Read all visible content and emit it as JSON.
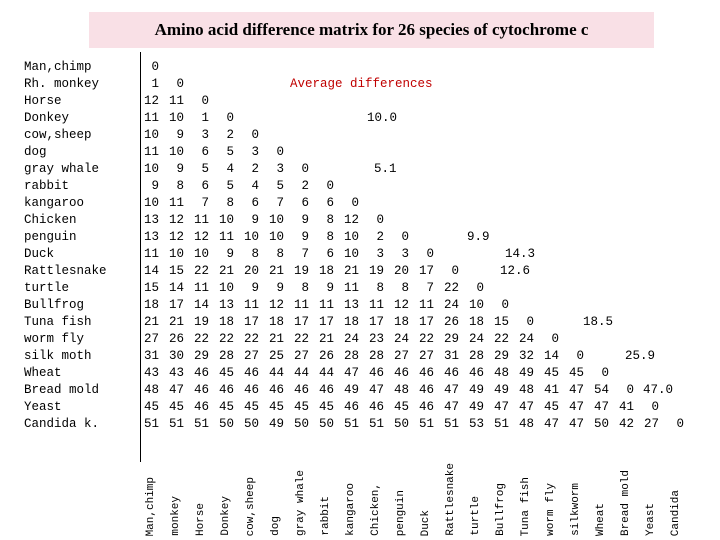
{
  "title": "Amino acid difference matrix for 26 species of cytochrome c",
  "species": [
    "Man,chimp",
    "Rh. monkey",
    "Horse",
    "Donkey",
    "cow,sheep",
    "dog",
    "gray whale",
    "rabbit",
    "kangaroo",
    "Chicken",
    "penguin",
    "Duck",
    "Rattlesnake",
    "turtle",
    "Bullfrog",
    "Tuna fish",
    "worm fly",
    "silk moth",
    "Wheat",
    "Bread mold",
    " Yeast",
    "Candida k."
  ],
  "column_labels": [
    "Man,chimp",
    "monkey",
    "Horse",
    "Donkey",
    "cow,sheep",
    "dog",
    "gray whale",
    "rabbit",
    "kangaroo",
    "Chicken,",
    "penguin",
    "Duck",
    "Rattlesnake",
    "turtle",
    "Bullfrog",
    "Tuna fish",
    "worm fly",
    "silkworm",
    "Wheat",
    "Bread mold",
    "Yeast",
    "Candida"
  ],
  "matrix": [
    [
      "0"
    ],
    [
      "1",
      "0"
    ],
    [
      "12",
      "11",
      "0"
    ],
    [
      "11",
      "10",
      "1",
      "0"
    ],
    [
      "10",
      "9",
      "3",
      "2",
      "0"
    ],
    [
      "11",
      "10",
      "6",
      "5",
      "3",
      "0"
    ],
    [
      "10",
      "9",
      "5",
      "4",
      "2",
      "3",
      "0"
    ],
    [
      "9",
      "8",
      "6",
      "5",
      "4",
      "5",
      "2",
      "0"
    ],
    [
      "10",
      "11",
      "7",
      "8",
      "6",
      "7",
      "6",
      "6",
      "0"
    ],
    [
      "13",
      "12",
      "11",
      "10",
      "9",
      "10",
      "9",
      "8",
      "12",
      "0"
    ],
    [
      "13",
      "12",
      "12",
      "11",
      "10",
      "10",
      "9",
      "8",
      "10",
      "2",
      "0"
    ],
    [
      "11",
      "10",
      "10",
      "9",
      "8",
      "8",
      "7",
      "6",
      "10",
      "3",
      "3",
      "0"
    ],
    [
      "14",
      "15",
      "22",
      "21",
      "20",
      "21",
      "19",
      "18",
      "21",
      "19",
      "20",
      "17",
      "0"
    ],
    [
      "15",
      "14",
      "11",
      "10",
      "9",
      "9",
      "8",
      "9",
      "11",
      "8",
      "8",
      "7",
      "22",
      "0"
    ],
    [
      "18",
      "17",
      "14",
      "13",
      "11",
      "12",
      "11",
      "11",
      "13",
      "11",
      "12",
      "11",
      "24",
      "10",
      "0"
    ],
    [
      "21",
      "21",
      "19",
      "18",
      "17",
      "18",
      "17",
      "17",
      "18",
      "17",
      "18",
      "17",
      "26",
      "18",
      "15",
      "0"
    ],
    [
      "27",
      "26",
      "22",
      "22",
      "22",
      "21",
      "22",
      "21",
      "24",
      "23",
      "24",
      "22",
      "29",
      "24",
      "22",
      "24",
      "0"
    ],
    [
      "31",
      "30",
      "29",
      "28",
      "27",
      "25",
      "27",
      "26",
      "28",
      "28",
      "27",
      "27",
      "31",
      "28",
      "29",
      "32",
      "14",
      "0"
    ],
    [
      "43",
      "43",
      "46",
      "45",
      "46",
      "44",
      "44",
      "44",
      "47",
      "46",
      "46",
      "46",
      "46",
      "46",
      "48",
      "49",
      "45",
      "45",
      "0"
    ],
    [
      "48",
      "47",
      "46",
      "46",
      "46",
      "46",
      "46",
      "46",
      "49",
      "47",
      "48",
      "46",
      "47",
      "49",
      "49",
      "48",
      "41",
      "47",
      "54",
      "0"
    ],
    [
      "45",
      "45",
      "46",
      "45",
      "45",
      "45",
      "45",
      "45",
      "46",
      "46",
      "45",
      "46",
      "47",
      "49",
      "47",
      "47",
      "45",
      "47",
      "47",
      "41",
      "0"
    ],
    [
      "51",
      "51",
      "51",
      "50",
      "50",
      "49",
      "50",
      "50",
      "51",
      "51",
      "50",
      "51",
      "51",
      "53",
      "51",
      "48",
      "47",
      "47",
      "50",
      "42",
      "27",
      "0"
    ]
  ],
  "average_differences": {
    "heading": "Average differences",
    "values": [
      "10.0",
      "5.1",
      "9.9",
      "14.3",
      "12.6",
      "18.5",
      "25.9",
      "47.0"
    ]
  }
}
